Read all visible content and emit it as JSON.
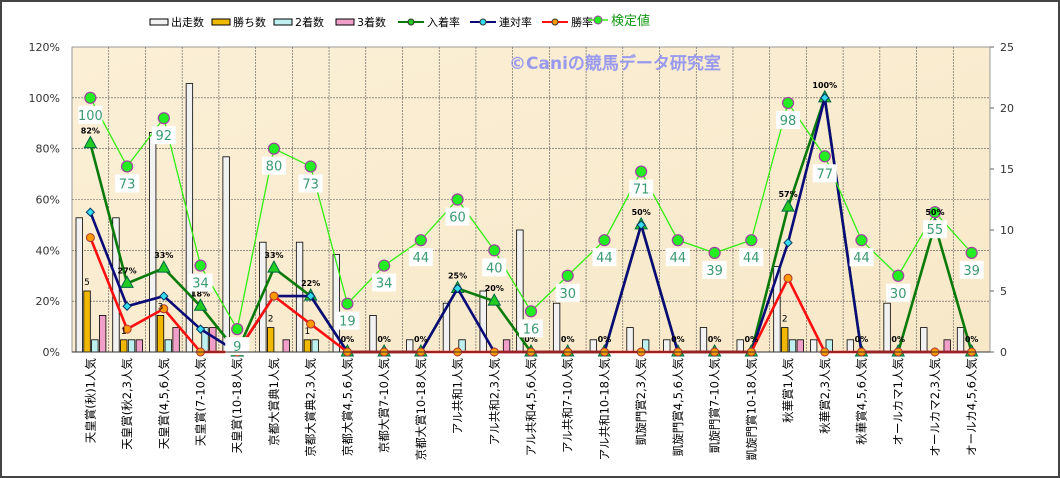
{
  "chart_data": {
    "type": "bar",
    "watermark": "©Caniの競馬データ研究室",
    "categories": [
      "天皇賞(秋)1人気",
      "天皇賞(秋2,3人気",
      "天皇賞(4,5,6人気",
      "天皇賞(7-10人気",
      "天皇賞(10-18人気",
      "京都大賞典1人気",
      "京都大賞典2,3人気",
      "京都大賞4,5,6人気",
      "京都大賞7-10人気",
      "京都大賞10-18人気",
      "アル共和1人気",
      "アル共和2,3人気",
      "アル共和4,5,6人気",
      "アル共和7-10人気",
      "アル共和10-18人気",
      "凱旋門賞2,3人気",
      "凱旋門賞4,5,6人気",
      "凱旋門賞7-10人気",
      "凱旋門賞10-18人気",
      "秋華賞1人気",
      "秋華賞2,3人気",
      "秋華賞4,5,6人気",
      "オールカマ1人気",
      "オールカマ2,3人気",
      "オールカ4,5,6人気"
    ],
    "left_axis": {
      "ylim": [
        0,
        120
      ],
      "ticks": [
        "0%",
        "20%",
        "40%",
        "60%",
        "80%",
        "100%",
        "120%"
      ]
    },
    "right_axis": {
      "ylim": [
        0,
        25
      ],
      "ticks": [
        "0",
        "5",
        "10",
        "15",
        "20",
        "25"
      ]
    },
    "bar_series": [
      {
        "name": "出走数",
        "color": "#f2f2f2",
        "values": [
          11,
          11,
          18,
          22,
          16,
          9,
          9,
          8,
          3,
          1,
          4,
          5,
          10,
          4,
          1,
          2,
          1,
          2,
          1,
          7,
          1,
          1,
          4,
          2,
          2
        ]
      },
      {
        "name": "勝ち数",
        "color": "#f0b800",
        "values": [
          5,
          1,
          3,
          0,
          0,
          2,
          1,
          0,
          0,
          0,
          0,
          0,
          0,
          0,
          0,
          0,
          0,
          0,
          0,
          2,
          0,
          0,
          0,
          0,
          0
        ]
      },
      {
        "name": "2着数",
        "color": "#bff0f0",
        "values": [
          1,
          1,
          1,
          2,
          0,
          0,
          1,
          0,
          0,
          0,
          1,
          0,
          0,
          0,
          0,
          1,
          0,
          0,
          0,
          1,
          1,
          0,
          0,
          0,
          0
        ]
      },
      {
        "name": "3着数",
        "color": "#f0a0c8",
        "values": [
          3,
          1,
          2,
          2,
          0,
          1,
          0,
          0,
          0,
          0,
          0,
          1,
          0,
          0,
          0,
          0,
          0,
          0,
          0,
          1,
          0,
          0,
          0,
          1,
          0
        ]
      }
    ],
    "line_series": [
      {
        "name": "入着率",
        "color": "#0a7a0a",
        "marker": "#22cc22",
        "values": [
          82,
          27,
          33,
          18,
          0,
          33,
          22,
          0,
          0,
          0,
          25,
          20,
          0,
          0,
          0,
          50,
          0,
          0,
          0,
          57,
          100,
          0,
          0,
          50,
          0
        ]
      },
      {
        "name": "連対率",
        "color": "#0a0a78",
        "marker": "#33ddee",
        "values": [
          55,
          18,
          22,
          9,
          0,
          22,
          22,
          0,
          0,
          0,
          25,
          0,
          0,
          0,
          0,
          50,
          0,
          0,
          0,
          43,
          100,
          0,
          0,
          0,
          0
        ]
      },
      {
        "name": "勝率",
        "color": "#ff1010",
        "marker": "#ff9900",
        "values": [
          45,
          9,
          17,
          0,
          0,
          22,
          11,
          0,
          0,
          0,
          0,
          0,
          0,
          0,
          0,
          0,
          0,
          0,
          0,
          29,
          0,
          0,
          0,
          0,
          0
        ]
      },
      {
        "name": "検定値",
        "color": "#33ee11",
        "marker": "#22ee22",
        "values": [
          100,
          73,
          92,
          34,
          9,
          80,
          73,
          19,
          34,
          44,
          60,
          40,
          16,
          30,
          44,
          71,
          44,
          39,
          44,
          98,
          77,
          44,
          30,
          55,
          39
        ]
      }
    ],
    "pct_labels": [
      "82%",
      "27%",
      "33%",
      "18%",
      "",
      "33%",
      "22%",
      "0%",
      "0%",
      "0%",
      "25%",
      "20%",
      "0%",
      "0%",
      "0%",
      "50%",
      "0%",
      "0%",
      "0%",
      "57%",
      "100%",
      "0%",
      "0%",
      "50%",
      "0%"
    ],
    "count_labels": [
      "5",
      "1",
      "3",
      "",
      "",
      "2",
      "1",
      "",
      "",
      "",
      "",
      "",
      "",
      "",
      "",
      "",
      "",
      "",
      "",
      "2",
      "",
      "",
      "",
      "",
      ""
    ],
    "legend_position": "top"
  }
}
